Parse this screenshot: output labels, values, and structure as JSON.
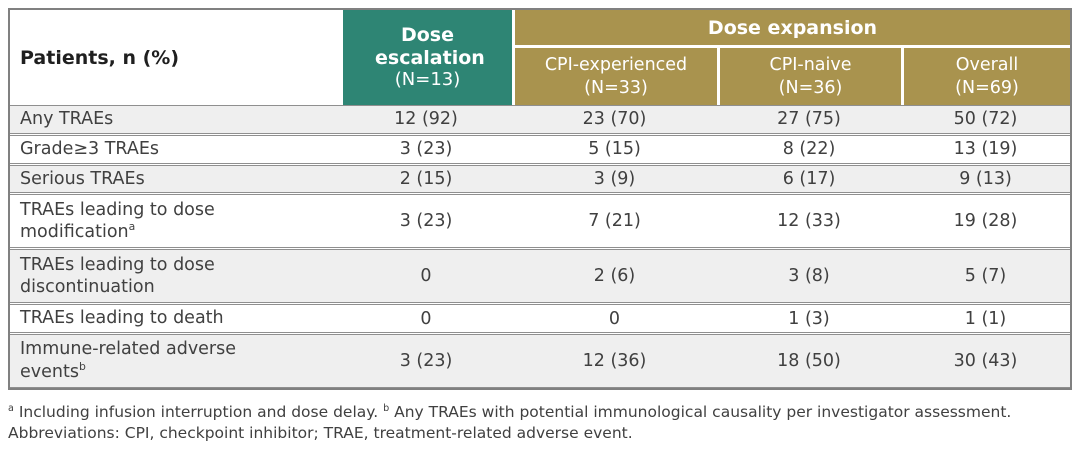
{
  "table": {
    "corner_header": "Patients, n (%)",
    "col_groups": {
      "escalation": {
        "title": "Dose escalation",
        "n": "(N=13)"
      },
      "expansion": {
        "title": "Dose expansion"
      }
    },
    "sub_headers": [
      {
        "label": "CPI-experienced",
        "n": "(N=33)"
      },
      {
        "label": "CPI-naive",
        "n": "(N=36)"
      },
      {
        "label": "Overall",
        "n": "(N=69)"
      }
    ],
    "rows": [
      {
        "label": "Any TRAEs",
        "sup": "",
        "values": [
          "12 (92)",
          "23 (70)",
          "27 (75)",
          "50 (72)"
        ]
      },
      {
        "label": "Grade≥3 TRAEs",
        "sup": "",
        "values": [
          "3 (23)",
          "5 (15)",
          "8 (22)",
          "13 (19)"
        ]
      },
      {
        "label": "Serious TRAEs",
        "sup": "",
        "values": [
          "2 (15)",
          "3 (9)",
          "6 (17)",
          "9 (13)"
        ]
      },
      {
        "label": "TRAEs leading to dose modification",
        "sup": "a",
        "values": [
          "3 (23)",
          "7 (21)",
          "12 (33)",
          "19 (28)"
        ]
      },
      {
        "label": "TRAEs leading to dose discontinuation",
        "sup": "",
        "values": [
          "0",
          "2 (6)",
          "3 (8)",
          "5 (7)"
        ]
      },
      {
        "label": "TRAEs leading to death",
        "sup": "",
        "values": [
          "0",
          "0",
          "1 (3)",
          "1 (1)"
        ]
      },
      {
        "label": "Immune-related adverse events",
        "sup": "b",
        "values": [
          "3 (23)",
          "12 (36)",
          "18 (50)",
          "30 (43)"
        ]
      }
    ]
  },
  "footnotes": {
    "sup_a": "a",
    "note_a": "Including infusion interruption and dose delay.",
    "sup_b": "b",
    "note_b": "Any TRAEs with potential immunological causality per investigator assessment. Abbreviations: CPI, checkpoint inhibitor; TRAE, treatment-related adverse event."
  },
  "colors": {
    "teal": "#2E8574",
    "gold": "#A9934E",
    "row_alt": "#EFEFEF",
    "border": "#808080",
    "line": "#8F8F8F",
    "text": "#404040",
    "header_text": "#FFFFFF",
    "corner_text": "#1F1F1F"
  }
}
